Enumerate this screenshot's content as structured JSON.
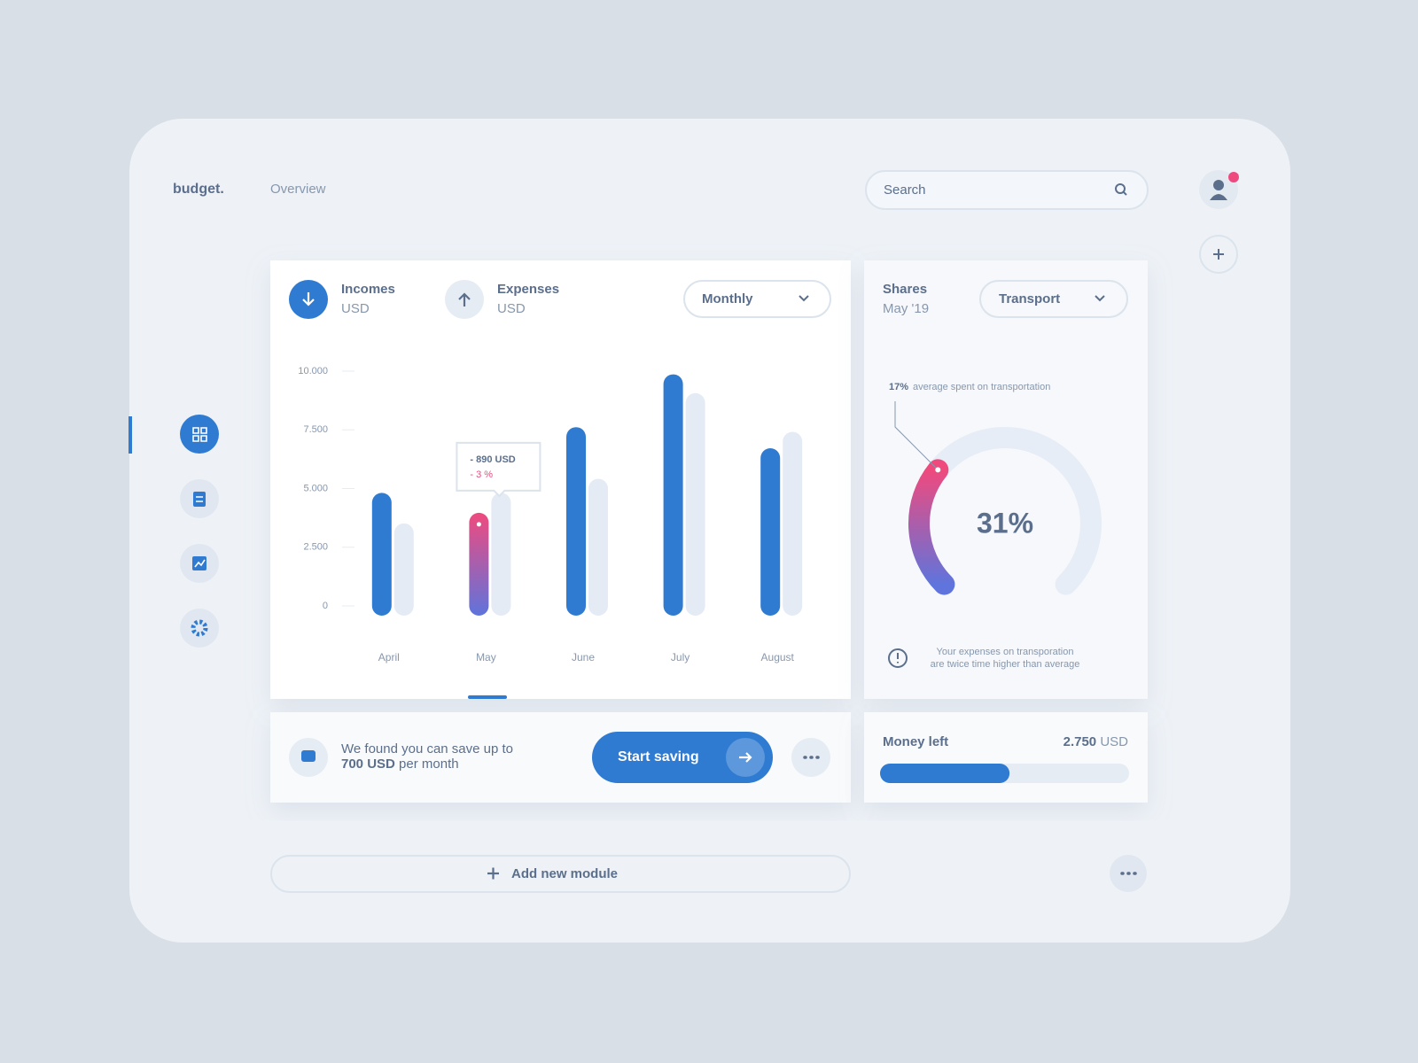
{
  "header": {
    "logo": "budget.",
    "nav": "Overview",
    "search": "Search"
  },
  "income_expense": {
    "incomes_unit": "USD",
    "expenses_unit": "USD",
    "period": "Monthly"
  },
  "chart_data": [
    {
      "type": "bar",
      "categories": [
        "April",
        "May",
        "June",
        "July",
        "August"
      ],
      "series": [
        {
          "name": "Incomes",
          "color": "#2f7bd1",
          "values": [
            4400,
            3550,
            7200,
            9450,
            6300
          ]
        },
        {
          "name": "Expenses",
          "color": "#e4ebf5",
          "values": [
            3100,
            4400,
            5000,
            8650,
            7000
          ]
        }
      ],
      "ylim": [
        0,
        10000
      ],
      "yticks": [
        0,
        {
          "value": 2500,
          "label": "2.500"
        },
        {
          "value": 5000,
          "label": "5.000"
        },
        {
          "value": 7500,
          "label": "7.500"
        },
        {
          "value": 10000,
          "label": "10.000"
        }
      ],
      "highlight": {
        "index": 1,
        "colors": [
          "#ef4a7e",
          "#5f74dc"
        ]
      },
      "tooltip": {
        "amount": "- 890 USD",
        "change": "- 3 %"
      }
    },
    {
      "type": "gauge",
      "title": "Shares",
      "subtitle": "May '19",
      "category": "Transport",
      "values": [
        31
      ],
      "value_labels": [
        "31%"
      ],
      "range": [
        0,
        100
      ],
      "colors": [
        "#ef4a7e",
        "#5f74dc"
      ],
      "track_color": "#e6edf6",
      "annotation": {
        "value": "17%",
        "text": "average spent on transportation"
      },
      "note": [
        "Your expenses on transporation",
        "are twice time higher than average"
      ]
    }
  ],
  "savings": {
    "text": "We found you can save up to",
    "amount": "700 USD",
    "suffix": "per month",
    "button": "Start saving"
  },
  "money_left": {
    "label": "Money left",
    "amount": "2.750",
    "unit": "USD",
    "percent": 52
  },
  "footer": {
    "add_module": "Add new module"
  }
}
